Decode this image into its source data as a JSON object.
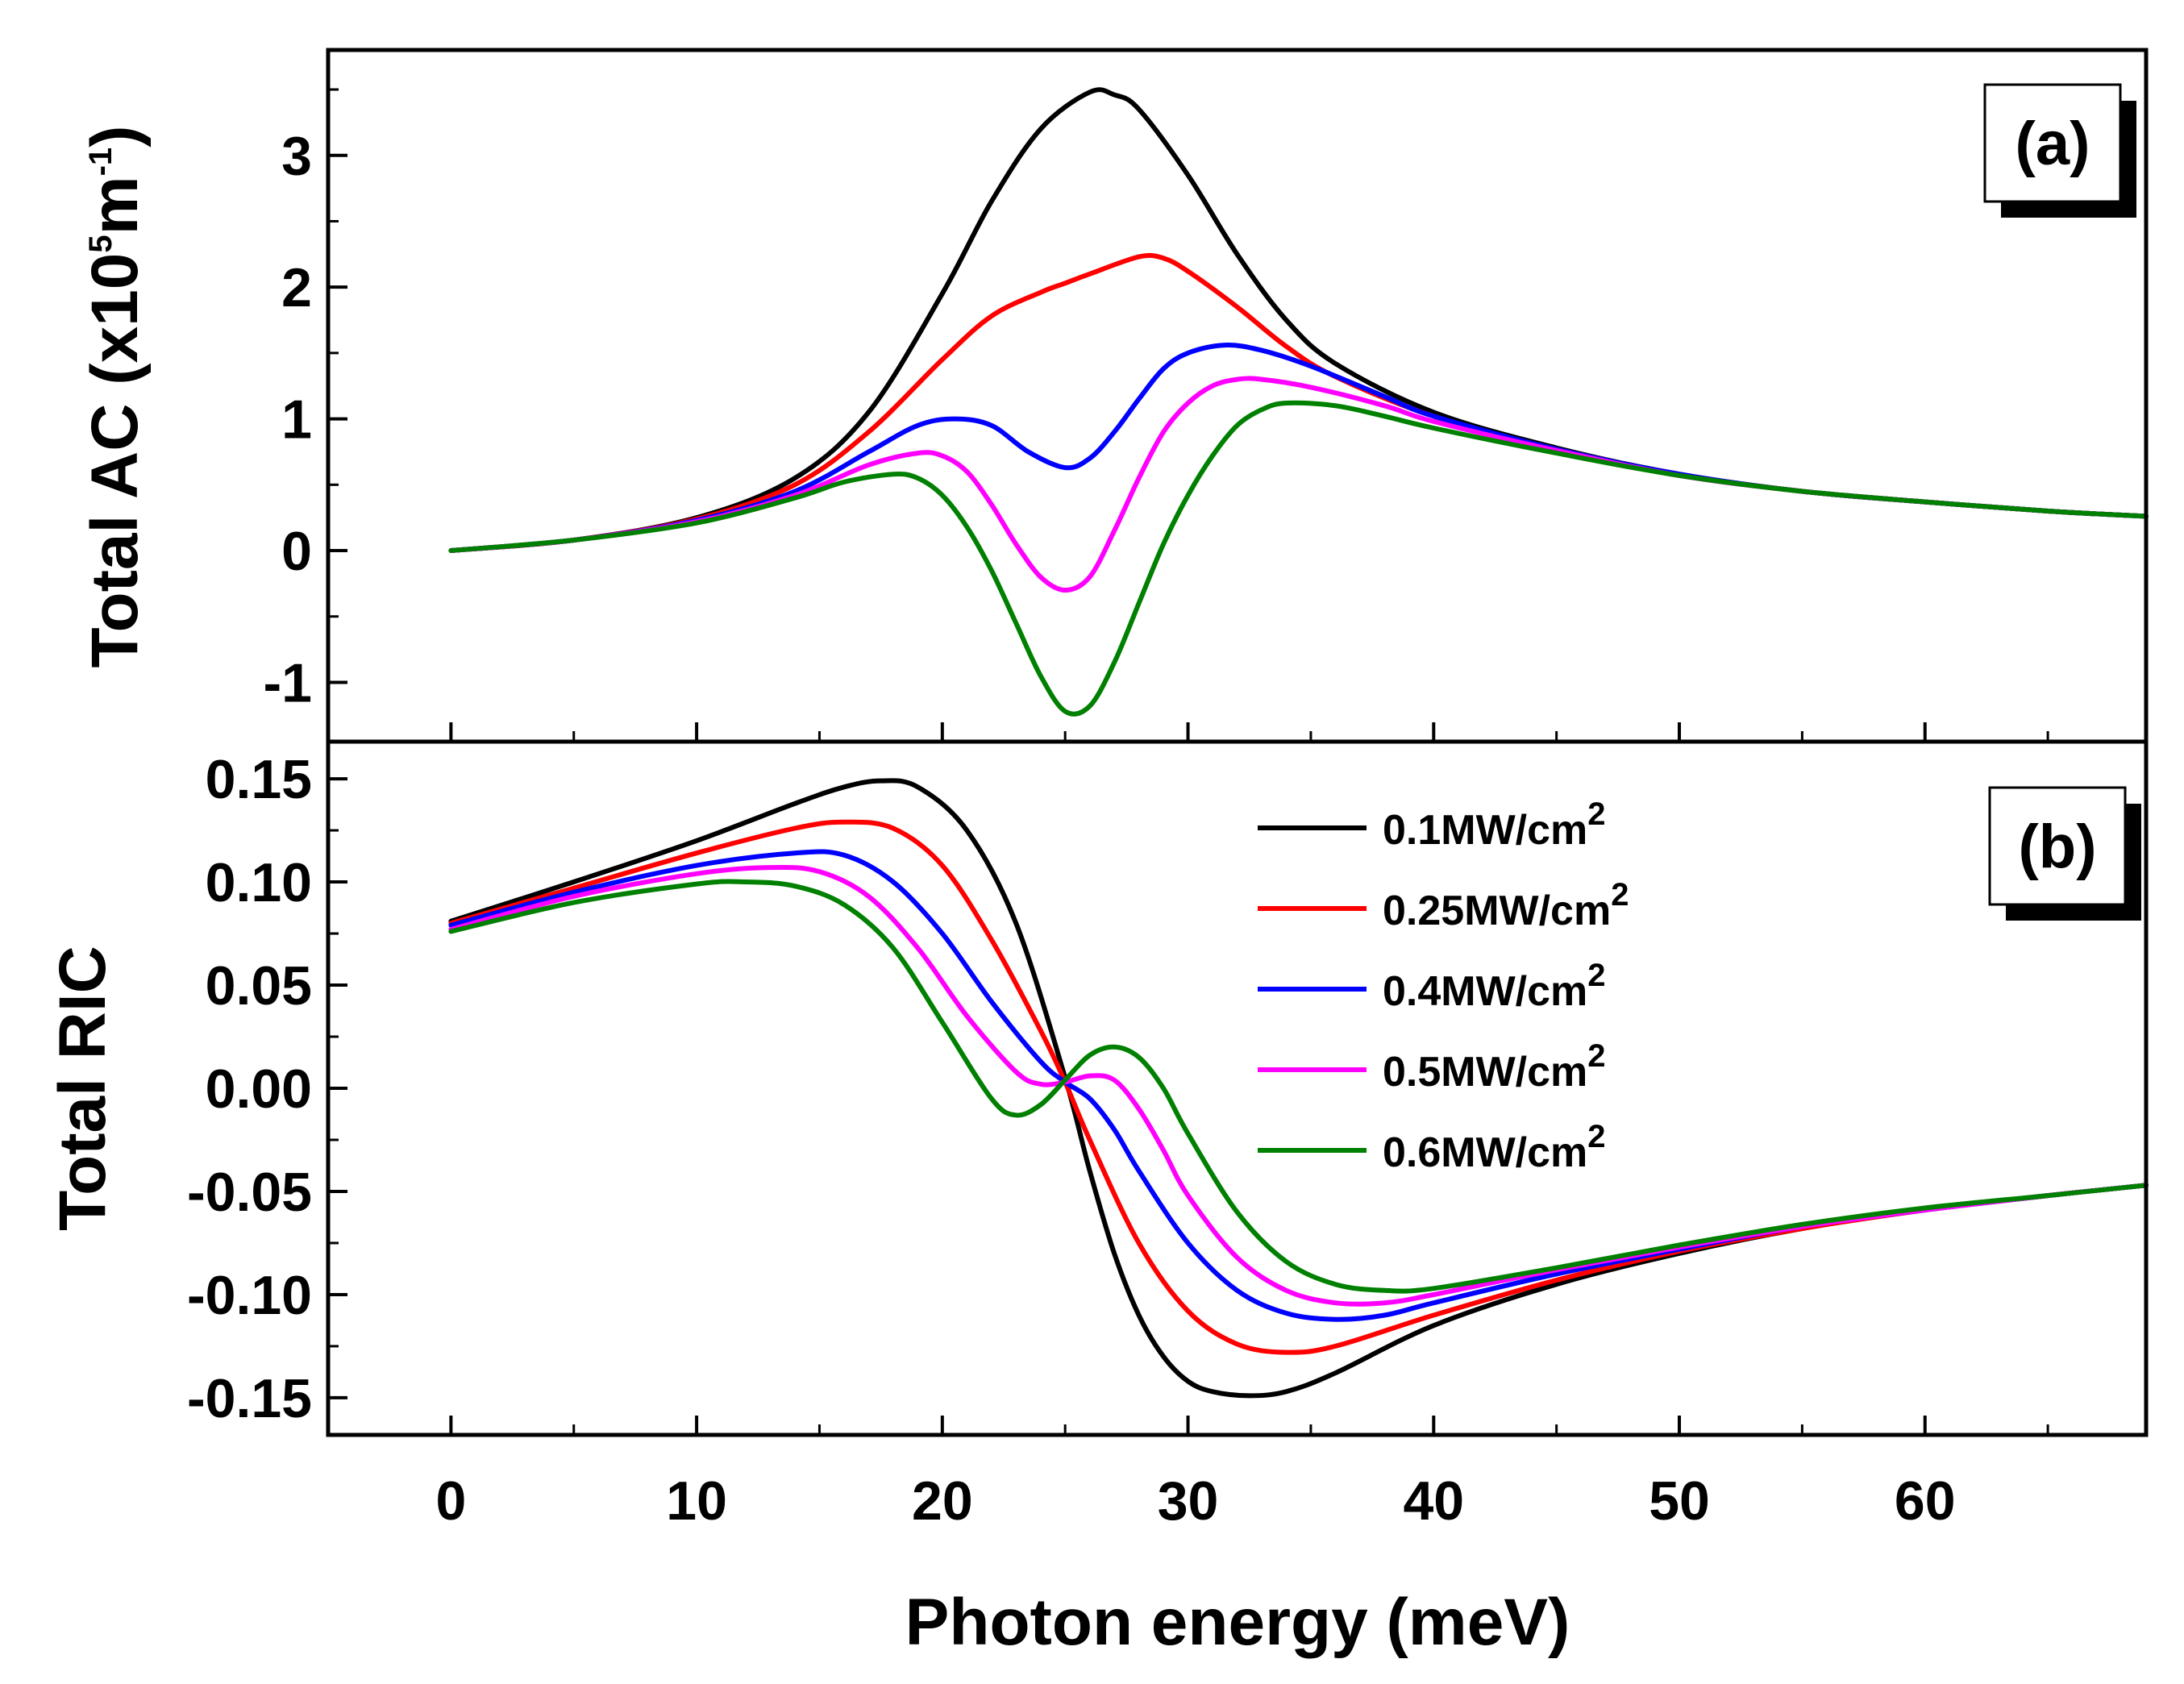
{
  "chart_data": [
    {
      "panel": "a",
      "type": "line",
      "panel_label": "(a)",
      "xlabel": "Photon energy (meV)",
      "ylabel": "Total AC (x10",
      "ylabel_sup1": "5",
      "ylabel_mid": "m",
      "ylabel_sup2": "-1",
      "ylabel_end": ")",
      "xlim": [
        -5,
        69
      ],
      "ylim": [
        -1.45,
        3.8
      ],
      "xticks": [
        0,
        10,
        20,
        30,
        40,
        50,
        60
      ],
      "yticks": [
        -1,
        0,
        1,
        2,
        3
      ],
      "ytick_labels": [
        "-1",
        "0",
        "1",
        "2",
        "3"
      ],
      "series": [
        {
          "name": "0.1MW/cm2",
          "color": "#000000",
          "x": [
            0,
            5,
            10,
            14,
            17,
            20,
            22,
            24,
            26,
            27,
            28,
            30,
            32,
            34,
            36,
            40,
            45,
            50,
            55,
            60,
            65,
            69
          ],
          "y": [
            0,
            0.08,
            0.25,
            0.55,
            1.05,
            1.95,
            2.65,
            3.2,
            3.48,
            3.46,
            3.35,
            2.85,
            2.25,
            1.75,
            1.42,
            1.05,
            0.78,
            0.58,
            0.45,
            0.37,
            0.3,
            0.26
          ]
        },
        {
          "name": "0.25MW/cm2",
          "color": "#ff0000",
          "x": [
            0,
            5,
            10,
            14,
            17,
            20,
            22,
            24,
            25,
            26,
            28,
            29,
            30,
            32,
            34,
            36,
            40,
            45,
            50,
            55,
            60,
            65,
            69
          ],
          "y": [
            0,
            0.08,
            0.24,
            0.5,
            0.9,
            1.45,
            1.78,
            1.96,
            2.03,
            2.1,
            2.23,
            2.22,
            2.12,
            1.85,
            1.55,
            1.32,
            1.02,
            0.77,
            0.58,
            0.45,
            0.37,
            0.3,
            0.26
          ]
        },
        {
          "name": "0.4MW/cm2",
          "color": "#0000ff",
          "x": [
            0,
            5,
            10,
            14,
            17,
            19,
            20.5,
            22,
            23.5,
            25,
            26,
            27,
            28,
            29,
            30,
            31.5,
            33,
            35,
            38,
            40,
            45,
            50,
            55,
            60,
            65,
            69
          ],
          "y": [
            0,
            0.08,
            0.23,
            0.45,
            0.75,
            0.95,
            1.0,
            0.95,
            0.75,
            0.63,
            0.7,
            0.9,
            1.15,
            1.38,
            1.5,
            1.56,
            1.52,
            1.4,
            1.17,
            1.02,
            0.77,
            0.58,
            0.45,
            0.37,
            0.3,
            0.26
          ]
        },
        {
          "name": "0.5MW/cm2",
          "color": "#ff00ff",
          "x": [
            0,
            5,
            10,
            14,
            17,
            19,
            20,
            21,
            22,
            23,
            24,
            25,
            26,
            27,
            28,
            29,
            30,
            31,
            32,
            33,
            35,
            38,
            40,
            45,
            50,
            55,
            60,
            65,
            69
          ],
          "y": [
            0,
            0.08,
            0.22,
            0.42,
            0.65,
            0.74,
            0.72,
            0.6,
            0.35,
            0.05,
            -0.2,
            -0.3,
            -0.2,
            0.15,
            0.55,
            0.9,
            1.12,
            1.25,
            1.3,
            1.3,
            1.24,
            1.1,
            0.98,
            0.76,
            0.57,
            0.45,
            0.37,
            0.3,
            0.26
          ]
        },
        {
          "name": "0.6MW/cm2",
          "color": "#008000",
          "x": [
            0,
            5,
            10,
            14,
            16,
            18,
            19,
            20,
            21,
            22,
            23,
            24,
            25,
            26,
            27,
            28,
            29,
            30,
            31,
            32,
            33,
            34,
            36,
            38,
            40,
            45,
            50,
            55,
            60,
            65,
            69
          ],
          "y": [
            0,
            0.08,
            0.21,
            0.4,
            0.52,
            0.58,
            0.55,
            0.42,
            0.18,
            -0.15,
            -0.55,
            -0.95,
            -1.22,
            -1.18,
            -0.85,
            -0.4,
            0.05,
            0.42,
            0.72,
            0.95,
            1.07,
            1.12,
            1.1,
            1.02,
            0.93,
            0.74,
            0.57,
            0.45,
            0.37,
            0.3,
            0.26
          ]
        }
      ]
    },
    {
      "panel": "b",
      "type": "line",
      "panel_label": "(b)",
      "xlabel": "Photon energy (meV)",
      "ylabel": "Total RIC",
      "xlim": [
        -5,
        69
      ],
      "ylim": [
        -0.168,
        0.168
      ],
      "xticks": [
        0,
        10,
        20,
        30,
        40,
        50,
        60
      ],
      "xtick_labels": [
        "0",
        "10",
        "20",
        "30",
        "40",
        "50",
        "60"
      ],
      "yticks": [
        -0.15,
        -0.1,
        -0.05,
        0,
        0.05,
        0.1,
        0.15
      ],
      "ytick_labels": [
        "-0.15",
        "-0.10",
        "-0.05",
        "0.00",
        "0.05",
        "0.10",
        "0.15"
      ],
      "series": [
        {
          "name": "0.1MW/cm2",
          "color": "#000000",
          "x": [
            0,
            5,
            10,
            14,
            16,
            17.5,
            19,
            21,
            23,
            25,
            26,
            27,
            28,
            29,
            30,
            31,
            32.5,
            34,
            36,
            40,
            45,
            50,
            55,
            60,
            65,
            69
          ],
          "y": [
            0.081,
            0.1,
            0.12,
            0.138,
            0.146,
            0.149,
            0.146,
            0.125,
            0.08,
            0.005,
            -0.04,
            -0.08,
            -0.11,
            -0.13,
            -0.142,
            -0.147,
            -0.149,
            -0.147,
            -0.138,
            -0.115,
            -0.095,
            -0.08,
            -0.068,
            -0.059,
            -0.052,
            -0.047
          ]
        },
        {
          "name": "0.25MW/cm2",
          "color": "#ff0000",
          "x": [
            0,
            5,
            10,
            14,
            16,
            18,
            20,
            22,
            24,
            25,
            26,
            28,
            30,
            32,
            34,
            36,
            40,
            45,
            50,
            55,
            60,
            65,
            69
          ],
          "y": [
            0.08,
            0.097,
            0.114,
            0.126,
            0.129,
            0.126,
            0.108,
            0.072,
            0.028,
            0.003,
            -0.025,
            -0.075,
            -0.108,
            -0.124,
            -0.128,
            -0.125,
            -0.11,
            -0.093,
            -0.079,
            -0.068,
            -0.059,
            -0.052,
            -0.047
          ]
        },
        {
          "name": "0.4MW/cm2",
          "color": "#0000ff",
          "x": [
            0,
            5,
            10,
            14,
            16,
            18,
            20,
            22,
            24,
            25,
            26,
            27,
            28,
            30,
            32,
            34,
            36,
            38,
            40,
            45,
            50,
            55,
            60,
            65,
            69
          ],
          "y": [
            0.079,
            0.095,
            0.108,
            0.114,
            0.113,
            0.1,
            0.075,
            0.042,
            0.013,
            0.003,
            -0.005,
            -0.02,
            -0.04,
            -0.075,
            -0.098,
            -0.109,
            -0.112,
            -0.11,
            -0.104,
            -0.09,
            -0.078,
            -0.067,
            -0.059,
            -0.052,
            -0.047
          ]
        },
        {
          "name": "0.5MW/cm2",
          "color": "#ff00ff",
          "x": [
            0,
            5,
            10,
            13,
            15,
            17,
            19,
            21,
            23,
            24,
            25,
            26,
            27,
            28,
            29,
            30,
            32,
            34,
            36,
            38,
            40,
            45,
            50,
            55,
            60,
            65,
            69
          ],
          "y": [
            0.077,
            0.093,
            0.104,
            0.107,
            0.105,
            0.093,
            0.068,
            0.035,
            0.008,
            0.002,
            0.003,
            0.006,
            0.004,
            -0.01,
            -0.03,
            -0.052,
            -0.082,
            -0.098,
            -0.104,
            -0.104,
            -0.1,
            -0.088,
            -0.077,
            -0.067,
            -0.059,
            -0.052,
            -0.047
          ]
        },
        {
          "name": "0.6MW/cm2",
          "color": "#008000",
          "x": [
            0,
            5,
            10,
            12,
            14,
            16,
            18,
            20,
            22,
            23,
            24,
            25,
            26,
            27,
            28,
            29,
            30,
            32,
            34,
            36,
            38,
            40,
            45,
            50,
            55,
            60,
            65,
            69
          ],
          "y": [
            0.076,
            0.09,
            0.099,
            0.1,
            0.098,
            0.089,
            0.068,
            0.032,
            -0.005,
            -0.013,
            -0.008,
            0.004,
            0.016,
            0.02,
            0.015,
            0.0,
            -0.022,
            -0.06,
            -0.084,
            -0.095,
            -0.098,
            -0.097,
            -0.087,
            -0.076,
            -0.066,
            -0.058,
            -0.052,
            -0.047
          ]
        }
      ]
    }
  ],
  "legend": [
    {
      "label": "0.1MW/cm",
      "sup": "2",
      "color": "#000000"
    },
    {
      "label": "0.25MW/cm",
      "sup": "2",
      "color": "#ff0000"
    },
    {
      "label": "0.4MW/cm",
      "sup": "2",
      "color": "#0000ff"
    },
    {
      "label": "0.5MW/cm",
      "sup": "2",
      "color": "#ff00ff"
    },
    {
      "label": "0.6MW/cm",
      "sup": "2",
      "color": "#008000"
    }
  ]
}
